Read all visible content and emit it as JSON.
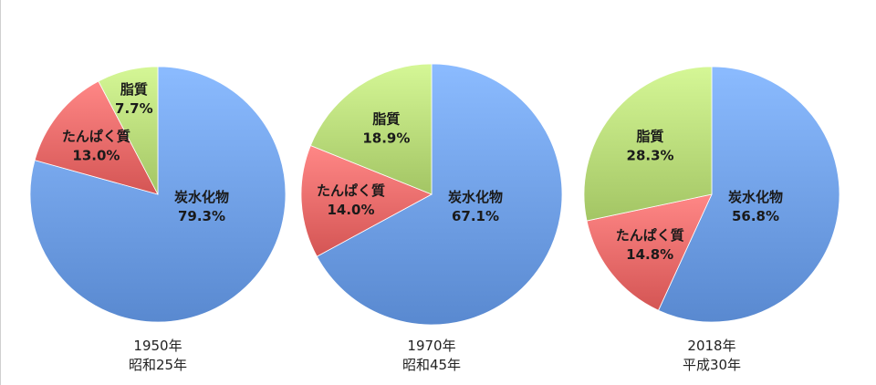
{
  "colors": {
    "炭水化物": "#6f9fe6",
    "たんぱく質": "#ea6b6a",
    "脂質": "#b9db7a"
  },
  "chart_data": [
    {
      "type": "pie",
      "caption_year": "1950年",
      "caption_era": "昭和25年",
      "slices": [
        {
          "name": "炭水化物",
          "value": 79.3,
          "label": "79.3%"
        },
        {
          "name": "たんぱく質",
          "value": 13.0,
          "label": "13.0%"
        },
        {
          "name": "脂質",
          "value": 7.7,
          "label": "7.7%"
        }
      ]
    },
    {
      "type": "pie",
      "caption_year": "1970年",
      "caption_era": "昭和45年",
      "slices": [
        {
          "name": "炭水化物",
          "value": 67.1,
          "label": "67.1%"
        },
        {
          "name": "たんぱく質",
          "value": 14.0,
          "label": "14.0%"
        },
        {
          "name": "脂質",
          "value": 18.9,
          "label": "18.9%"
        }
      ]
    },
    {
      "type": "pie",
      "caption_year": "2018年",
      "caption_era": "平成30年",
      "slices": [
        {
          "name": "炭水化物",
          "value": 56.8,
          "label": "56.8%"
        },
        {
          "name": "たんぱく質",
          "value": 14.8,
          "label": "14.8%"
        },
        {
          "name": "脂質",
          "value": 28.3,
          "label": "28.3%"
        }
      ]
    }
  ]
}
